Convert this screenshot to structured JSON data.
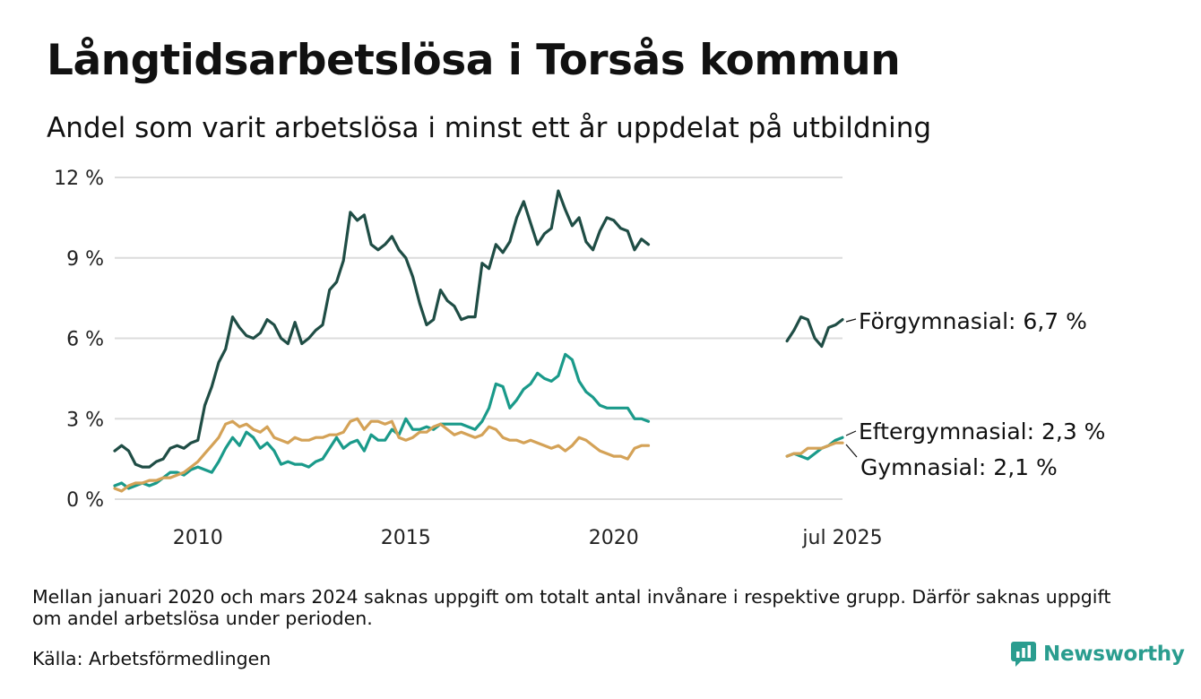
{
  "header": {
    "title": "Långtidsarbetslösa i Torsås kommun",
    "subtitle": "Andel som varit arbetslösa i minst ett år uppdelat på utbildning"
  },
  "footer": {
    "note": "Mellan januari 2020 och mars 2024 saknas uppgift om totalt antal invånare i respektive grupp. Därför saknas uppgift om andel arbetslösa under perioden.",
    "source": "Källa: Arbetsförmedlingen",
    "brand": "Newsworthy",
    "brand_color": "#2a9d8f"
  },
  "chart_data": {
    "type": "line",
    "title": "Långtidsarbetslösa i Torsås kommun",
    "subtitle": "Andel som varit arbetslösa i minst ett år uppdelat på utbildning",
    "ylim": [
      0,
      12
    ],
    "y_ticks": [
      0,
      3,
      6,
      9,
      12
    ],
    "y_tick_labels": [
      "0 %",
      "3 %",
      "6 %",
      "9 %",
      "12 %"
    ],
    "x_ticks": [
      {
        "date": "2010-01",
        "label": "2010"
      },
      {
        "date": "2015-01",
        "label": "2015"
      },
      {
        "date": "2020-01",
        "label": "2020"
      },
      {
        "date": "2025-07",
        "label": "jul 2025"
      }
    ],
    "grid": "horizontal",
    "series": [
      {
        "name": "Förgymnasial",
        "label": "Förgymnasial: 6,7 %",
        "color": "#1f4d45",
        "points": [
          [
            "2008-01",
            1.8
          ],
          [
            "2008-03",
            2.0
          ],
          [
            "2008-05",
            1.8
          ],
          [
            "2008-07",
            1.3
          ],
          [
            "2008-09",
            1.2
          ],
          [
            "2008-11",
            1.2
          ],
          [
            "2009-01",
            1.4
          ],
          [
            "2009-03",
            1.5
          ],
          [
            "2009-05",
            1.9
          ],
          [
            "2009-07",
            2.0
          ],
          [
            "2009-09",
            1.9
          ],
          [
            "2009-11",
            2.1
          ],
          [
            "2010-01",
            2.2
          ],
          [
            "2010-03",
            3.5
          ],
          [
            "2010-05",
            4.2
          ],
          [
            "2010-07",
            5.1
          ],
          [
            "2010-09",
            5.6
          ],
          [
            "2010-11",
            6.8
          ],
          [
            "2011-01",
            6.4
          ],
          [
            "2011-03",
            6.1
          ],
          [
            "2011-05",
            6.0
          ],
          [
            "2011-07",
            6.2
          ],
          [
            "2011-09",
            6.7
          ],
          [
            "2011-11",
            6.5
          ],
          [
            "2012-01",
            6.0
          ],
          [
            "2012-03",
            5.8
          ],
          [
            "2012-05",
            6.6
          ],
          [
            "2012-07",
            5.8
          ],
          [
            "2012-09",
            6.0
          ],
          [
            "2012-11",
            6.3
          ],
          [
            "2013-01",
            6.5
          ],
          [
            "2013-03",
            7.8
          ],
          [
            "2013-05",
            8.1
          ],
          [
            "2013-07",
            8.9
          ],
          [
            "2013-09",
            10.7
          ],
          [
            "2013-11",
            10.4
          ],
          [
            "2014-01",
            10.6
          ],
          [
            "2014-03",
            9.5
          ],
          [
            "2014-05",
            9.3
          ],
          [
            "2014-07",
            9.5
          ],
          [
            "2014-09",
            9.8
          ],
          [
            "2014-11",
            9.3
          ],
          [
            "2015-01",
            9.0
          ],
          [
            "2015-03",
            8.3
          ],
          [
            "2015-05",
            7.3
          ],
          [
            "2015-07",
            6.5
          ],
          [
            "2015-09",
            6.7
          ],
          [
            "2015-11",
            7.8
          ],
          [
            "2016-01",
            7.4
          ],
          [
            "2016-03",
            7.2
          ],
          [
            "2016-05",
            6.7
          ],
          [
            "2016-07",
            6.8
          ],
          [
            "2016-09",
            6.8
          ],
          [
            "2016-11",
            8.8
          ],
          [
            "2017-01",
            8.6
          ],
          [
            "2017-03",
            9.5
          ],
          [
            "2017-05",
            9.2
          ],
          [
            "2017-07",
            9.6
          ],
          [
            "2017-09",
            10.5
          ],
          [
            "2017-11",
            11.1
          ],
          [
            "2018-01",
            10.3
          ],
          [
            "2018-03",
            9.5
          ],
          [
            "2018-05",
            9.9
          ],
          [
            "2018-07",
            10.1
          ],
          [
            "2018-09",
            11.5
          ],
          [
            "2018-11",
            10.8
          ],
          [
            "2019-01",
            10.2
          ],
          [
            "2019-03",
            10.5
          ],
          [
            "2019-05",
            9.6
          ],
          [
            "2019-07",
            9.3
          ],
          [
            "2019-09",
            10.0
          ],
          [
            "2019-11",
            10.5
          ],
          [
            "2020-01",
            10.4
          ],
          [
            "2020-03",
            10.1
          ],
          [
            "2020-05",
            10.0
          ],
          [
            "2020-07",
            9.3
          ],
          [
            "2020-09",
            9.7
          ],
          [
            "2020-11",
            9.5
          ],
          [
            "2024-03",
            5.9
          ],
          [
            "2024-05",
            6.3
          ],
          [
            "2024-07",
            6.8
          ],
          [
            "2024-09",
            6.7
          ],
          [
            "2024-11",
            6.0
          ],
          [
            "2025-01",
            5.7
          ],
          [
            "2025-03",
            6.4
          ],
          [
            "2025-05",
            6.5
          ],
          [
            "2025-07",
            6.7
          ]
        ]
      },
      {
        "name": "Eftergymnasial",
        "label": "Eftergymnasial: 2,3 %",
        "color": "#1a9a8a",
        "points": [
          [
            "2008-01",
            0.5
          ],
          [
            "2008-03",
            0.6
          ],
          [
            "2008-05",
            0.4
          ],
          [
            "2008-07",
            0.5
          ],
          [
            "2008-09",
            0.6
          ],
          [
            "2008-11",
            0.5
          ],
          [
            "2009-01",
            0.6
          ],
          [
            "2009-03",
            0.8
          ],
          [
            "2009-05",
            1.0
          ],
          [
            "2009-07",
            1.0
          ],
          [
            "2009-09",
            0.9
          ],
          [
            "2009-11",
            1.1
          ],
          [
            "2010-01",
            1.2
          ],
          [
            "2010-03",
            1.1
          ],
          [
            "2010-05",
            1.0
          ],
          [
            "2010-07",
            1.4
          ],
          [
            "2010-09",
            1.9
          ],
          [
            "2010-11",
            2.3
          ],
          [
            "2011-01",
            2.0
          ],
          [
            "2011-03",
            2.5
          ],
          [
            "2011-05",
            2.3
          ],
          [
            "2011-07",
            1.9
          ],
          [
            "2011-09",
            2.1
          ],
          [
            "2011-11",
            1.8
          ],
          [
            "2012-01",
            1.3
          ],
          [
            "2012-03",
            1.4
          ],
          [
            "2012-05",
            1.3
          ],
          [
            "2012-07",
            1.3
          ],
          [
            "2012-09",
            1.2
          ],
          [
            "2012-11",
            1.4
          ],
          [
            "2013-01",
            1.5
          ],
          [
            "2013-03",
            1.9
          ],
          [
            "2013-05",
            2.3
          ],
          [
            "2013-07",
            1.9
          ],
          [
            "2013-09",
            2.1
          ],
          [
            "2013-11",
            2.2
          ],
          [
            "2014-01",
            1.8
          ],
          [
            "2014-03",
            2.4
          ],
          [
            "2014-05",
            2.2
          ],
          [
            "2014-07",
            2.2
          ],
          [
            "2014-09",
            2.6
          ],
          [
            "2014-11",
            2.4
          ],
          [
            "2015-01",
            3.0
          ],
          [
            "2015-03",
            2.6
          ],
          [
            "2015-05",
            2.6
          ],
          [
            "2015-07",
            2.7
          ],
          [
            "2015-09",
            2.6
          ],
          [
            "2015-11",
            2.8
          ],
          [
            "2016-01",
            2.8
          ],
          [
            "2016-03",
            2.8
          ],
          [
            "2016-05",
            2.8
          ],
          [
            "2016-07",
            2.7
          ],
          [
            "2016-09",
            2.6
          ],
          [
            "2016-11",
            2.9
          ],
          [
            "2017-01",
            3.4
          ],
          [
            "2017-03",
            4.3
          ],
          [
            "2017-05",
            4.2
          ],
          [
            "2017-07",
            3.4
          ],
          [
            "2017-09",
            3.7
          ],
          [
            "2017-11",
            4.1
          ],
          [
            "2018-01",
            4.3
          ],
          [
            "2018-03",
            4.7
          ],
          [
            "2018-05",
            4.5
          ],
          [
            "2018-07",
            4.4
          ],
          [
            "2018-09",
            4.6
          ],
          [
            "2018-11",
            5.4
          ],
          [
            "2019-01",
            5.2
          ],
          [
            "2019-03",
            4.4
          ],
          [
            "2019-05",
            4.0
          ],
          [
            "2019-07",
            3.8
          ],
          [
            "2019-09",
            3.5
          ],
          [
            "2019-11",
            3.4
          ],
          [
            "2020-01",
            3.4
          ],
          [
            "2020-03",
            3.4
          ],
          [
            "2020-05",
            3.4
          ],
          [
            "2020-07",
            3.0
          ],
          [
            "2020-09",
            3.0
          ],
          [
            "2020-11",
            2.9
          ],
          [
            "2024-03",
            1.6
          ],
          [
            "2024-05",
            1.7
          ],
          [
            "2024-07",
            1.6
          ],
          [
            "2024-09",
            1.5
          ],
          [
            "2024-11",
            1.7
          ],
          [
            "2025-01",
            1.9
          ],
          [
            "2025-03",
            2.0
          ],
          [
            "2025-05",
            2.2
          ],
          [
            "2025-07",
            2.3
          ]
        ]
      },
      {
        "name": "Gymnasial",
        "label": "Gymnasial: 2,1 %",
        "color": "#d4a257",
        "points": [
          [
            "2008-01",
            0.4
          ],
          [
            "2008-03",
            0.3
          ],
          [
            "2008-05",
            0.5
          ],
          [
            "2008-07",
            0.6
          ],
          [
            "2008-09",
            0.6
          ],
          [
            "2008-11",
            0.7
          ],
          [
            "2009-01",
            0.7
          ],
          [
            "2009-03",
            0.8
          ],
          [
            "2009-05",
            0.8
          ],
          [
            "2009-07",
            0.9
          ],
          [
            "2009-09",
            1.0
          ],
          [
            "2009-11",
            1.2
          ],
          [
            "2010-01",
            1.4
          ],
          [
            "2010-03",
            1.7
          ],
          [
            "2010-05",
            2.0
          ],
          [
            "2010-07",
            2.3
          ],
          [
            "2010-09",
            2.8
          ],
          [
            "2010-11",
            2.9
          ],
          [
            "2011-01",
            2.7
          ],
          [
            "2011-03",
            2.8
          ],
          [
            "2011-05",
            2.6
          ],
          [
            "2011-07",
            2.5
          ],
          [
            "2011-09",
            2.7
          ],
          [
            "2011-11",
            2.3
          ],
          [
            "2012-01",
            2.2
          ],
          [
            "2012-03",
            2.1
          ],
          [
            "2012-05",
            2.3
          ],
          [
            "2012-07",
            2.2
          ],
          [
            "2012-09",
            2.2
          ],
          [
            "2012-11",
            2.3
          ],
          [
            "2013-01",
            2.3
          ],
          [
            "2013-03",
            2.4
          ],
          [
            "2013-05",
            2.4
          ],
          [
            "2013-07",
            2.5
          ],
          [
            "2013-09",
            2.9
          ],
          [
            "2013-11",
            3.0
          ],
          [
            "2014-01",
            2.6
          ],
          [
            "2014-03",
            2.9
          ],
          [
            "2014-05",
            2.9
          ],
          [
            "2014-07",
            2.8
          ],
          [
            "2014-09",
            2.9
          ],
          [
            "2014-11",
            2.3
          ],
          [
            "2015-01",
            2.2
          ],
          [
            "2015-03",
            2.3
          ],
          [
            "2015-05",
            2.5
          ],
          [
            "2015-07",
            2.5
          ],
          [
            "2015-09",
            2.7
          ],
          [
            "2015-11",
            2.8
          ],
          [
            "2016-01",
            2.6
          ],
          [
            "2016-03",
            2.4
          ],
          [
            "2016-05",
            2.5
          ],
          [
            "2016-07",
            2.4
          ],
          [
            "2016-09",
            2.3
          ],
          [
            "2016-11",
            2.4
          ],
          [
            "2017-01",
            2.7
          ],
          [
            "2017-03",
            2.6
          ],
          [
            "2017-05",
            2.3
          ],
          [
            "2017-07",
            2.2
          ],
          [
            "2017-09",
            2.2
          ],
          [
            "2017-11",
            2.1
          ],
          [
            "2018-01",
            2.2
          ],
          [
            "2018-03",
            2.1
          ],
          [
            "2018-05",
            2.0
          ],
          [
            "2018-07",
            1.9
          ],
          [
            "2018-09",
            2.0
          ],
          [
            "2018-11",
            1.8
          ],
          [
            "2019-01",
            2.0
          ],
          [
            "2019-03",
            2.3
          ],
          [
            "2019-05",
            2.2
          ],
          [
            "2019-07",
            2.0
          ],
          [
            "2019-09",
            1.8
          ],
          [
            "2019-11",
            1.7
          ],
          [
            "2020-01",
            1.6
          ],
          [
            "2020-03",
            1.6
          ],
          [
            "2020-05",
            1.5
          ],
          [
            "2020-07",
            1.9
          ],
          [
            "2020-09",
            2.0
          ],
          [
            "2020-11",
            2.0
          ],
          [
            "2024-03",
            1.6
          ],
          [
            "2024-05",
            1.7
          ],
          [
            "2024-07",
            1.7
          ],
          [
            "2024-09",
            1.9
          ],
          [
            "2024-11",
            1.9
          ],
          [
            "2025-01",
            1.9
          ],
          [
            "2025-03",
            2.0
          ],
          [
            "2025-05",
            2.1
          ],
          [
            "2025-07",
            2.1
          ]
        ]
      }
    ]
  }
}
